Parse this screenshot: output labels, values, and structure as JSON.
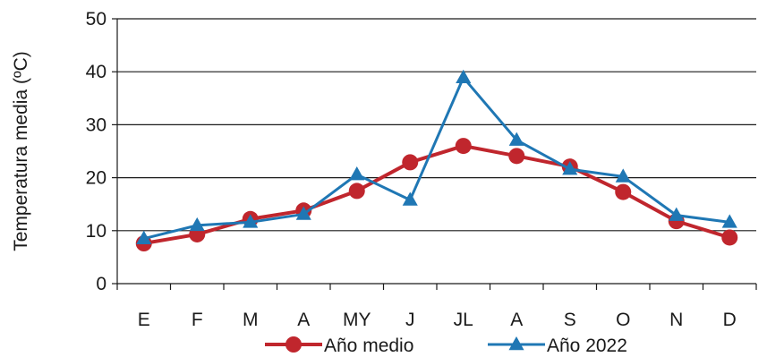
{
  "chart_data": {
    "type": "line",
    "title": "",
    "xlabel": "",
    "ylabel": "Temperatura  media (ºC)",
    "ylim": [
      0,
      50
    ],
    "yticks": [
      0,
      10,
      20,
      30,
      40,
      50
    ],
    "grid": true,
    "legend_position": "bottom",
    "categories": [
      "E",
      "F",
      "M",
      "A",
      "MY",
      "J",
      "JL",
      "A",
      "S",
      "O",
      "N",
      "D"
    ],
    "series": [
      {
        "name": "Año medio",
        "color": "#c0262d",
        "marker": "circle",
        "values": [
          7.6,
          9.3,
          12.2,
          13.8,
          17.5,
          22.9,
          26.0,
          24.1,
          22.1,
          17.3,
          11.8,
          8.7
        ]
      },
      {
        "name": "Año 2022",
        "color": "#1f77b4",
        "marker": "triangle",
        "values": [
          8.5,
          11.0,
          11.6,
          13.1,
          20.6,
          15.8,
          38.9,
          27.1,
          21.6,
          20.2,
          12.9,
          11.6
        ]
      }
    ]
  }
}
